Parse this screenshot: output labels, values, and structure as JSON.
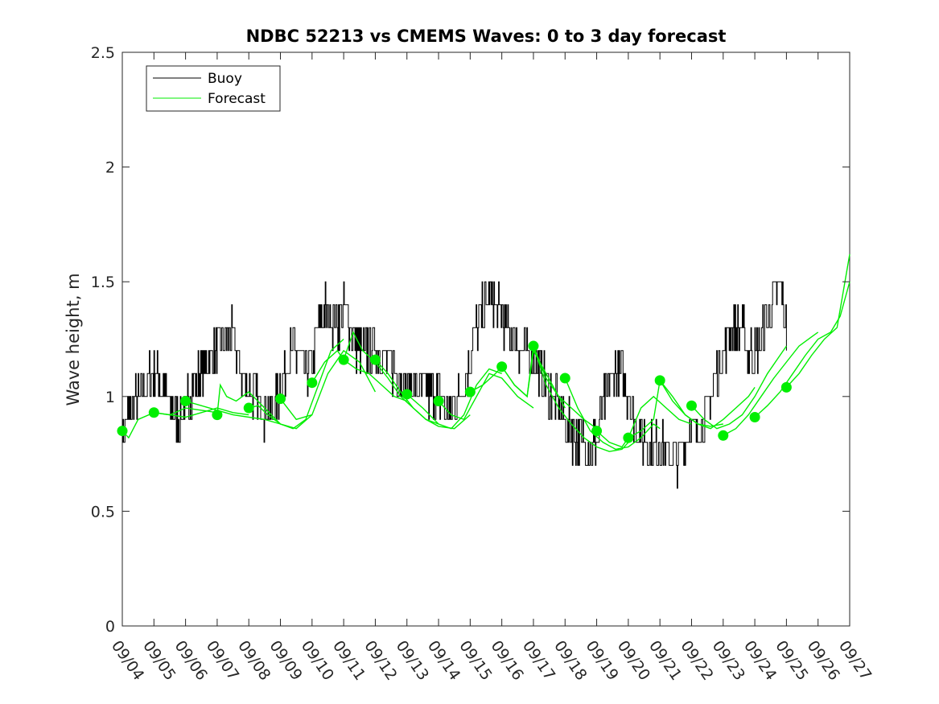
{
  "chart_data": {
    "type": "line",
    "title": "NDBC 52213 vs CMEMS Waves: 0 to 3 day forecast",
    "xlabel": "",
    "ylabel": "Wave height, m",
    "x_tick_labels": [
      "09/04",
      "09/05",
      "09/06",
      "09/07",
      "09/08",
      "09/09",
      "09/10",
      "09/11",
      "09/12",
      "09/13",
      "09/14",
      "09/15",
      "09/16",
      "09/17",
      "09/18",
      "09/19",
      "09/20",
      "09/21",
      "09/22",
      "09/23",
      "09/24",
      "09/25",
      "09/26",
      "09/27"
    ],
    "y_tick_labels": [
      "0",
      "0.5",
      "1",
      "1.5",
      "2",
      "2.5"
    ],
    "xlim": [
      0,
      23
    ],
    "ylim": [
      0,
      2.5
    ],
    "grid": false,
    "legend_position": "top-left",
    "colors": {
      "buoy": "#000000",
      "forecast": "#00ee00"
    },
    "legend": [
      "Buoy",
      "Forecast"
    ],
    "buoy_anchors": [
      [
        0.0,
        0.85
      ],
      [
        0.15,
        0.9
      ],
      [
        0.35,
        0.95
      ],
      [
        0.55,
        1.0
      ],
      [
        0.75,
        1.05
      ],
      [
        0.95,
        1.1
      ],
      [
        1.15,
        1.1
      ],
      [
        1.35,
        1.0
      ],
      [
        1.6,
        0.93
      ],
      [
        1.8,
        0.9
      ],
      [
        2.0,
        0.95
      ],
      [
        2.25,
        1.05
      ],
      [
        2.5,
        1.1
      ],
      [
        2.75,
        1.15
      ],
      [
        3.0,
        1.2
      ],
      [
        3.2,
        1.25
      ],
      [
        3.4,
        1.28
      ],
      [
        3.6,
        1.2
      ],
      [
        3.8,
        1.1
      ],
      [
        4.0,
        1.02
      ],
      [
        4.2,
        1.0
      ],
      [
        4.45,
        0.95
      ],
      [
        4.7,
        0.92
      ],
      [
        5.0,
        1.05
      ],
      [
        5.2,
        1.15
      ],
      [
        5.4,
        1.2
      ],
      [
        5.6,
        1.15
      ],
      [
        5.8,
        1.1
      ],
      [
        6.0,
        1.15
      ],
      [
        6.2,
        1.28
      ],
      [
        6.4,
        1.38
      ],
      [
        6.6,
        1.35
      ],
      [
        6.8,
        1.32
      ],
      [
        7.0,
        1.4
      ],
      [
        7.2,
        1.32
      ],
      [
        7.4,
        1.22
      ],
      [
        7.6,
        1.18
      ],
      [
        7.8,
        1.22
      ],
      [
        8.0,
        1.25
      ],
      [
        8.2,
        1.18
      ],
      [
        8.4,
        1.15
      ],
      [
        8.6,
        1.12
      ],
      [
        8.8,
        1.08
      ],
      [
        9.0,
        1.05
      ],
      [
        9.2,
        1.05
      ],
      [
        9.4,
        1.05
      ],
      [
        9.6,
        1.02
      ],
      [
        9.8,
        1.0
      ],
      [
        10.0,
        1.02
      ],
      [
        10.2,
        0.95
      ],
      [
        10.4,
        0.92
      ],
      [
        10.6,
        1.0
      ],
      [
        10.8,
        1.05
      ],
      [
        11.0,
        1.18
      ],
      [
        11.2,
        1.3
      ],
      [
        11.4,
        1.38
      ],
      [
        11.6,
        1.42
      ],
      [
        11.8,
        1.4
      ],
      [
        12.0,
        1.35
      ],
      [
        12.2,
        1.28
      ],
      [
        12.4,
        1.25
      ],
      [
        12.6,
        1.2
      ],
      [
        12.8,
        1.18
      ],
      [
        13.0,
        1.15
      ],
      [
        13.2,
        1.1
      ],
      [
        13.4,
        1.05
      ],
      [
        13.6,
        1.0
      ],
      [
        13.8,
        0.95
      ],
      [
        14.0,
        0.9
      ],
      [
        14.2,
        0.85
      ],
      [
        14.4,
        0.82
      ],
      [
        14.6,
        0.8
      ],
      [
        14.8,
        0.8
      ],
      [
        15.0,
        0.8
      ],
      [
        15.2,
        0.95
      ],
      [
        15.4,
        1.05
      ],
      [
        15.6,
        1.12
      ],
      [
        15.8,
        1.08
      ],
      [
        16.0,
        1.0
      ],
      [
        16.2,
        0.9
      ],
      [
        16.4,
        0.82
      ],
      [
        16.6,
        0.8
      ],
      [
        16.8,
        0.78
      ],
      [
        17.0,
        0.8
      ],
      [
        17.2,
        0.75
      ],
      [
        17.4,
        0.72
      ],
      [
        17.6,
        0.75
      ],
      [
        17.8,
        0.82
      ],
      [
        18.0,
        0.88
      ],
      [
        18.2,
        0.85
      ],
      [
        18.4,
        0.92
      ],
      [
        18.6,
        1.0
      ],
      [
        18.8,
        1.1
      ],
      [
        19.0,
        1.2
      ],
      [
        19.2,
        1.3
      ],
      [
        19.4,
        1.3
      ],
      [
        19.6,
        1.28
      ],
      [
        19.8,
        1.2
      ],
      [
        20.0,
        1.18
      ],
      [
        20.2,
        1.25
      ],
      [
        20.4,
        1.35
      ],
      [
        20.6,
        1.45
      ],
      [
        20.8,
        1.5
      ],
      [
        21.0,
        1.3
      ]
    ],
    "buoy_jitter": 0.05,
    "buoy_step": 0.1,
    "forecast_series": [
      {
        "x": [
          0.0,
          0.2,
          0.5,
          1.0,
          1.5,
          2.0,
          2.5,
          3.0
        ],
        "y": [
          0.85,
          0.82,
          0.9,
          0.93,
          0.92,
          0.95,
          0.94,
          0.93
        ]
      },
      {
        "x": [
          1.0,
          1.5,
          2.0,
          2.5,
          3.0,
          3.5,
          4.0
        ],
        "y": [
          0.93,
          0.92,
          0.91,
          0.93,
          0.95,
          0.93,
          0.92
        ]
      },
      {
        "x": [
          2.0,
          2.5,
          3.0,
          3.5,
          4.0,
          4.5,
          5.0
        ],
        "y": [
          0.98,
          0.96,
          0.94,
          0.92,
          0.91,
          0.9,
          0.88
        ]
      },
      {
        "x": [
          3.0,
          3.1,
          3.3,
          3.6,
          4.0,
          4.5,
          5.0,
          5.5,
          6.0
        ],
        "y": [
          0.92,
          1.05,
          1.0,
          0.98,
          1.02,
          0.95,
          0.88,
          0.86,
          0.92
        ]
      },
      {
        "x": [
          4.0,
          4.3,
          4.6,
          5.0,
          5.4,
          5.8,
          6.2,
          6.6,
          7.0
        ],
        "y": [
          0.95,
          0.96,
          0.92,
          0.88,
          0.86,
          0.9,
          1.05,
          1.2,
          1.25
        ]
      },
      {
        "x": [
          5.0,
          5.5,
          6.0,
          6.5,
          7.0,
          7.5,
          8.0
        ],
        "y": [
          0.99,
          0.9,
          0.92,
          1.1,
          1.2,
          1.15,
          1.02
        ]
      },
      {
        "x": [
          6.0,
          6.4,
          6.8,
          7.0,
          7.4,
          7.8,
          8.2,
          8.6,
          9.0
        ],
        "y": [
          1.06,
          1.15,
          1.2,
          1.16,
          1.12,
          1.1,
          1.05,
          1.0,
          0.98
        ]
      },
      {
        "x": [
          7.0,
          7.3,
          7.6,
          8.0,
          8.4,
          8.8,
          9.2,
          9.6,
          10.0
        ],
        "y": [
          1.16,
          1.28,
          1.2,
          1.15,
          1.08,
          1.0,
          0.95,
          0.9,
          0.88
        ]
      },
      {
        "x": [
          8.0,
          8.4,
          8.8,
          9.2,
          9.6,
          10.0,
          10.5,
          11.0
        ],
        "y": [
          1.16,
          1.1,
          1.02,
          0.95,
          0.9,
          0.87,
          0.86,
          0.92
        ]
      },
      {
        "x": [
          9.0,
          9.5,
          10.0,
          10.4,
          10.8,
          11.2,
          11.6,
          12.0
        ],
        "y": [
          1.01,
          0.95,
          0.88,
          0.86,
          0.92,
          1.05,
          1.12,
          1.1
        ]
      },
      {
        "x": [
          10.0,
          10.4,
          10.8,
          11.2,
          11.6,
          12.0,
          12.5,
          13.0
        ],
        "y": [
          0.98,
          0.92,
          0.9,
          1.0,
          1.1,
          1.08,
          1.0,
          0.95
        ]
      },
      {
        "x": [
          11.0,
          11.4,
          11.8,
          12.0,
          12.4,
          12.8,
          13.0,
          13.4,
          13.8,
          14.0
        ],
        "y": [
          1.02,
          1.05,
          1.1,
          1.13,
          1.05,
          1.0,
          1.2,
          1.1,
          1.0,
          0.95
        ]
      },
      {
        "x": [
          12.0,
          12.4,
          12.8,
          13.0,
          13.4,
          13.8,
          14.2,
          14.6,
          15.0
        ],
        "y": [
          1.13,
          1.05,
          1.0,
          1.22,
          1.08,
          1.0,
          0.95,
          0.9,
          0.86
        ]
      },
      {
        "x": [
          13.0,
          13.4,
          13.8,
          14.2,
          14.6,
          15.0,
          15.4,
          15.8,
          16.0
        ],
        "y": [
          1.22,
          1.05,
          0.95,
          0.88,
          0.82,
          0.78,
          0.76,
          0.77,
          0.8
        ]
      },
      {
        "x": [
          14.0,
          14.4,
          14.8,
          15.2,
          15.6,
          16.0,
          16.4,
          16.8,
          17.0
        ],
        "y": [
          1.08,
          0.95,
          0.85,
          0.8,
          0.77,
          0.78,
          0.82,
          0.88,
          0.86
        ]
      },
      {
        "x": [
          15.0,
          15.4,
          15.8,
          16.0,
          16.4,
          16.8,
          17.2,
          17.6,
          18.0
        ],
        "y": [
          0.85,
          0.8,
          0.78,
          0.82,
          0.95,
          1.0,
          0.95,
          0.9,
          0.88
        ]
      },
      {
        "x": [
          16.0,
          16.4,
          16.8,
          17.0,
          17.4,
          17.8,
          18.2,
          18.6,
          19.0
        ],
        "y": [
          0.82,
          0.85,
          0.9,
          1.07,
          1.0,
          0.92,
          0.88,
          0.87,
          0.88
        ]
      },
      {
        "x": [
          17.0,
          17.4,
          17.8,
          18.2,
          18.6,
          19.0,
          19.4,
          19.8,
          20.0
        ],
        "y": [
          1.07,
          0.98,
          0.92,
          0.88,
          0.86,
          0.9,
          0.95,
          1.0,
          1.04
        ]
      },
      {
        "x": [
          18.0,
          18.4,
          18.8,
          19.2,
          19.6,
          20.0,
          20.4,
          20.8,
          21.0
        ],
        "y": [
          0.96,
          0.9,
          0.86,
          0.88,
          0.92,
          1.0,
          1.1,
          1.18,
          1.22
        ]
      },
      {
        "x": [
          19.0,
          19.4,
          19.8,
          20.2,
          20.6,
          21.0,
          21.4,
          21.8,
          22.0
        ],
        "y": [
          0.83,
          0.86,
          0.92,
          1.0,
          1.08,
          1.15,
          1.22,
          1.26,
          1.28
        ]
      },
      {
        "x": [
          20.0,
          20.4,
          20.8,
          21.2,
          21.6,
          22.0,
          22.4,
          22.7,
          23.0
        ],
        "y": [
          0.91,
          0.96,
          1.02,
          1.1,
          1.18,
          1.25,
          1.28,
          1.35,
          1.5
        ]
      },
      {
        "x": [
          21.0,
          21.4,
          21.8,
          22.2,
          22.6,
          23.0
        ],
        "y": [
          1.04,
          1.1,
          1.18,
          1.25,
          1.3,
          1.62
        ]
      }
    ],
    "forecast_markers": {
      "x": [
        0,
        1,
        2,
        3,
        4,
        5,
        6,
        7,
        8,
        9,
        10,
        11,
        12,
        13,
        14,
        15,
        16,
        17,
        18,
        19,
        20,
        21
      ],
      "y": [
        0.85,
        0.93,
        0.98,
        0.92,
        0.95,
        0.99,
        1.06,
        1.16,
        1.16,
        1.01,
        0.98,
        1.02,
        1.13,
        1.22,
        1.08,
        0.85,
        0.82,
        1.07,
        0.96,
        0.83,
        0.91,
        1.04
      ]
    }
  }
}
